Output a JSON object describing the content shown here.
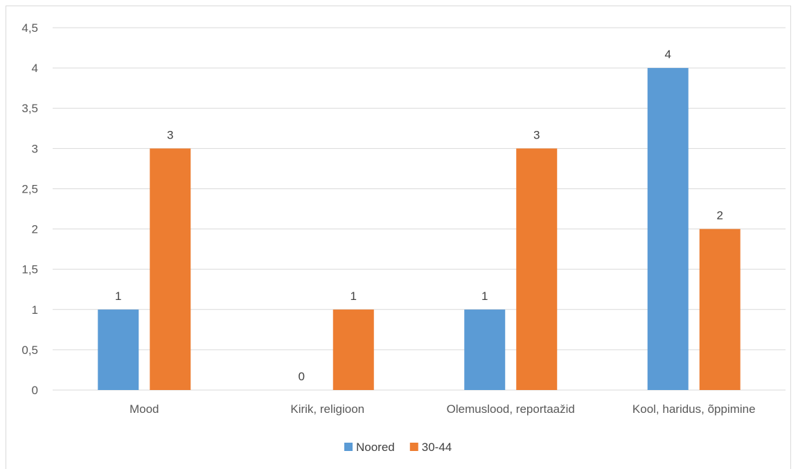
{
  "chart_data": {
    "type": "bar",
    "categories": [
      "Mood",
      "Kirik, religioon",
      "Olemuslood, reportaažid",
      "Kool, haridus, õppimine"
    ],
    "series": [
      {
        "name": "Noored",
        "values": [
          1,
          0,
          1,
          4
        ],
        "color": "#5b9bd5"
      },
      {
        "name": "30-44",
        "values": [
          3,
          1,
          3,
          2
        ],
        "color": "#ed7d31"
      }
    ],
    "y_ticks": [
      "0",
      "0,5",
      "1",
      "1,5",
      "2",
      "2,5",
      "3",
      "3,5",
      "4",
      "4,5"
    ],
    "ylim": [
      0,
      4.5
    ],
    "ytick_step": 0.5,
    "grid": true,
    "legend_position": "bottom",
    "gridline_color": "#d9d9d9",
    "label_color": "#595959"
  }
}
